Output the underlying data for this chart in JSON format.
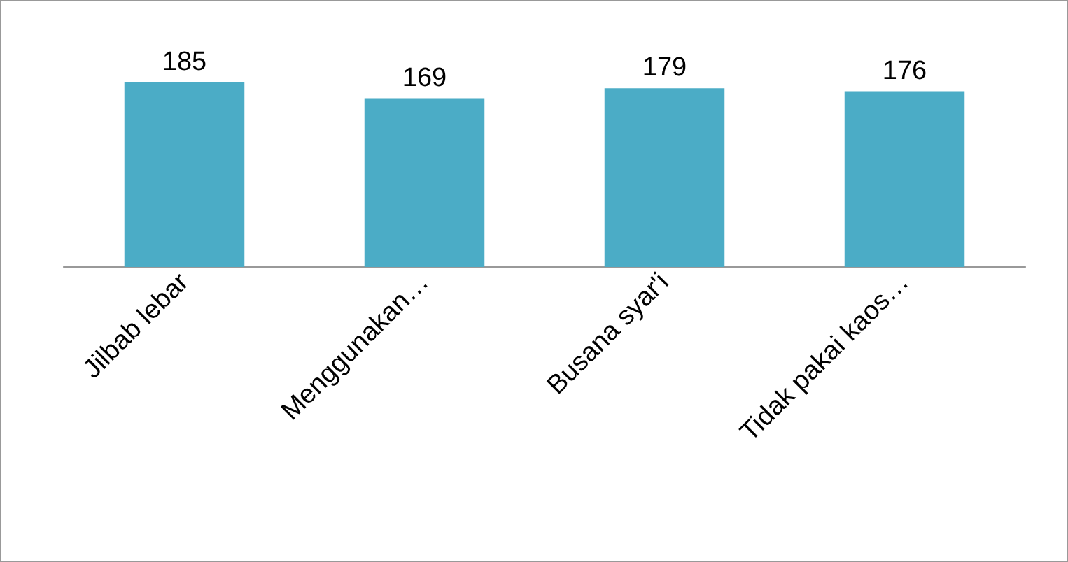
{
  "chart_data": {
    "type": "bar",
    "categories": [
      "Jilbab lebar",
      "Menggunakan…",
      "Busana syar'i",
      "Tidak pakai kaos…"
    ],
    "values": [
      185,
      169,
      179,
      176
    ],
    "color": "#4bacc6",
    "data_labels": true,
    "tick_labels": "x"
  }
}
